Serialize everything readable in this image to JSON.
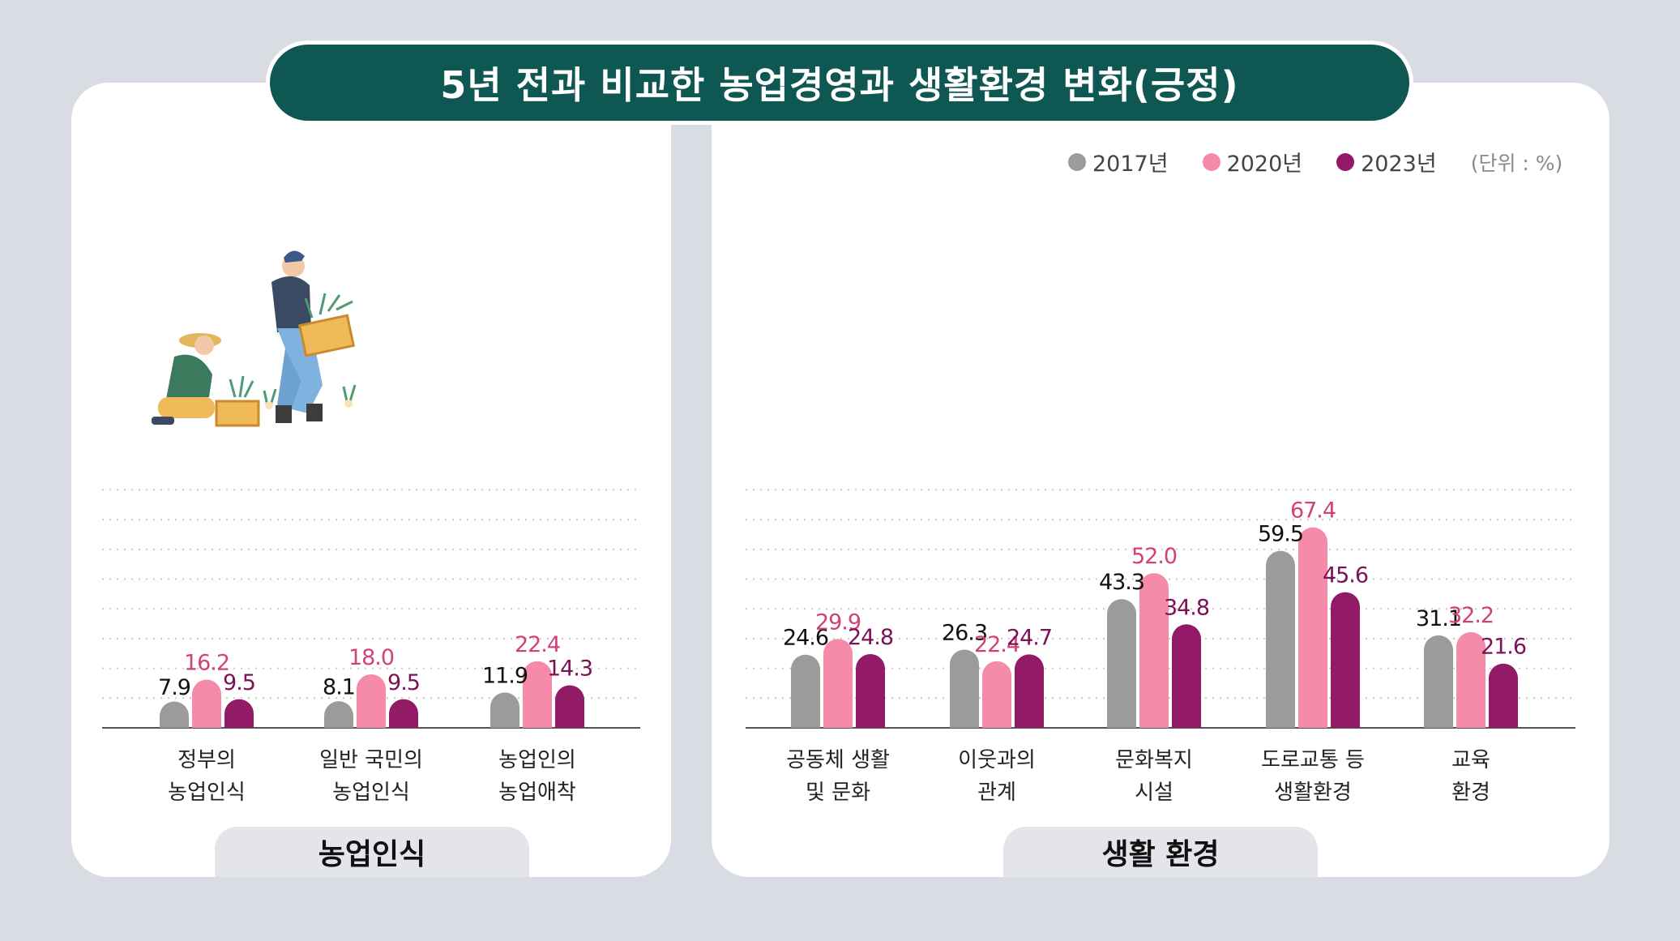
{
  "title": "5년 전과 비교한 농업경영과 생활환경 변화(긍정)",
  "legend": {
    "items": [
      {
        "label": "2017년",
        "color": "#9b9b9b"
      },
      {
        "label": "2020년",
        "color": "#f58ba8"
      },
      {
        "label": "2023년",
        "color": "#921a66"
      }
    ],
    "unit": "(단위 : %)"
  },
  "label_colors": [
    "#111111",
    "#d2417a",
    "#7d1158"
  ],
  "chart_data": [
    {
      "type": "bar",
      "panel_label": "농업인식",
      "categories": [
        [
          "정부의",
          "농업인식"
        ],
        [
          "일반 국민의",
          "농업인식"
        ],
        [
          "농업인의",
          "농업애착"
        ]
      ],
      "series": [
        {
          "name": "2017년",
          "values": [
            7.9,
            8.1,
            11.9
          ],
          "labels": [
            "7.9",
            "8.1",
            "11.9"
          ]
        },
        {
          "name": "2020년",
          "values": [
            16.2,
            18.0,
            22.4
          ],
          "labels": [
            "16.2",
            "18.0",
            "22.4"
          ]
        },
        {
          "name": "2023년",
          "values": [
            9.5,
            9.5,
            14.3
          ],
          "labels": [
            "9.5",
            "9.5",
            "14.3"
          ]
        }
      ],
      "ylim": [
        0,
        80
      ],
      "grid": true
    },
    {
      "type": "bar",
      "panel_label": "생활 환경",
      "categories": [
        [
          "공동체 생활",
          "및 문화"
        ],
        [
          "이웃과의",
          "관계"
        ],
        [
          "문화복지",
          "시설"
        ],
        [
          "도로교통 등",
          "생활환경"
        ],
        [
          "교육",
          "환경"
        ]
      ],
      "series": [
        {
          "name": "2017년",
          "values": [
            24.6,
            26.3,
            43.3,
            59.5,
            31.1
          ],
          "labels": [
            "24.6",
            "26.3",
            "43.3",
            "59.5",
            "31.1"
          ]
        },
        {
          "name": "2020년",
          "values": [
            29.9,
            22.4,
            52.0,
            67.4,
            32.2
          ],
          "labels": [
            "29.9",
            "22.4",
            "52.0",
            "67.4",
            "32.2"
          ]
        },
        {
          "name": "2023년",
          "values": [
            24.8,
            24.7,
            34.8,
            45.6,
            21.6
          ],
          "labels": [
            "24.8",
            "24.7",
            "34.8",
            "45.6",
            "21.6"
          ]
        }
      ],
      "ylim": [
        0,
        80
      ],
      "grid": true
    }
  ]
}
